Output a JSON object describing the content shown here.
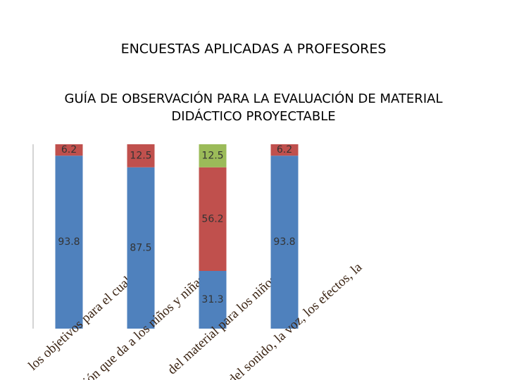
{
  "chart_data": {
    "type": "stacked_bar",
    "title": "ENCUESTAS APLICADAS A PROFESORES",
    "subtitle": "GUÍA DE OBSERVACIÓN PARA LA EVALUACIÓN DE MATERIAL DIDÁCTICO PROYECTABLE",
    "categories": [
      "los objetivos para el cual fue",
      "ión que da a los niños y niñas es:",
      "del material para los niños es:",
      "del sonido, la voz, los efectos, la"
    ],
    "series": [
      {
        "color": "#4f81bd",
        "values": [
          93.8,
          87.5,
          31.3,
          93.8
        ]
      },
      {
        "color": "#c0504d",
        "values": [
          6.2,
          12.5,
          56.2,
          6.2
        ]
      },
      {
        "color": "#9bbb59",
        "values": [
          null,
          null,
          12.5,
          null
        ]
      }
    ],
    "ylim": [
      0,
      100
    ]
  }
}
